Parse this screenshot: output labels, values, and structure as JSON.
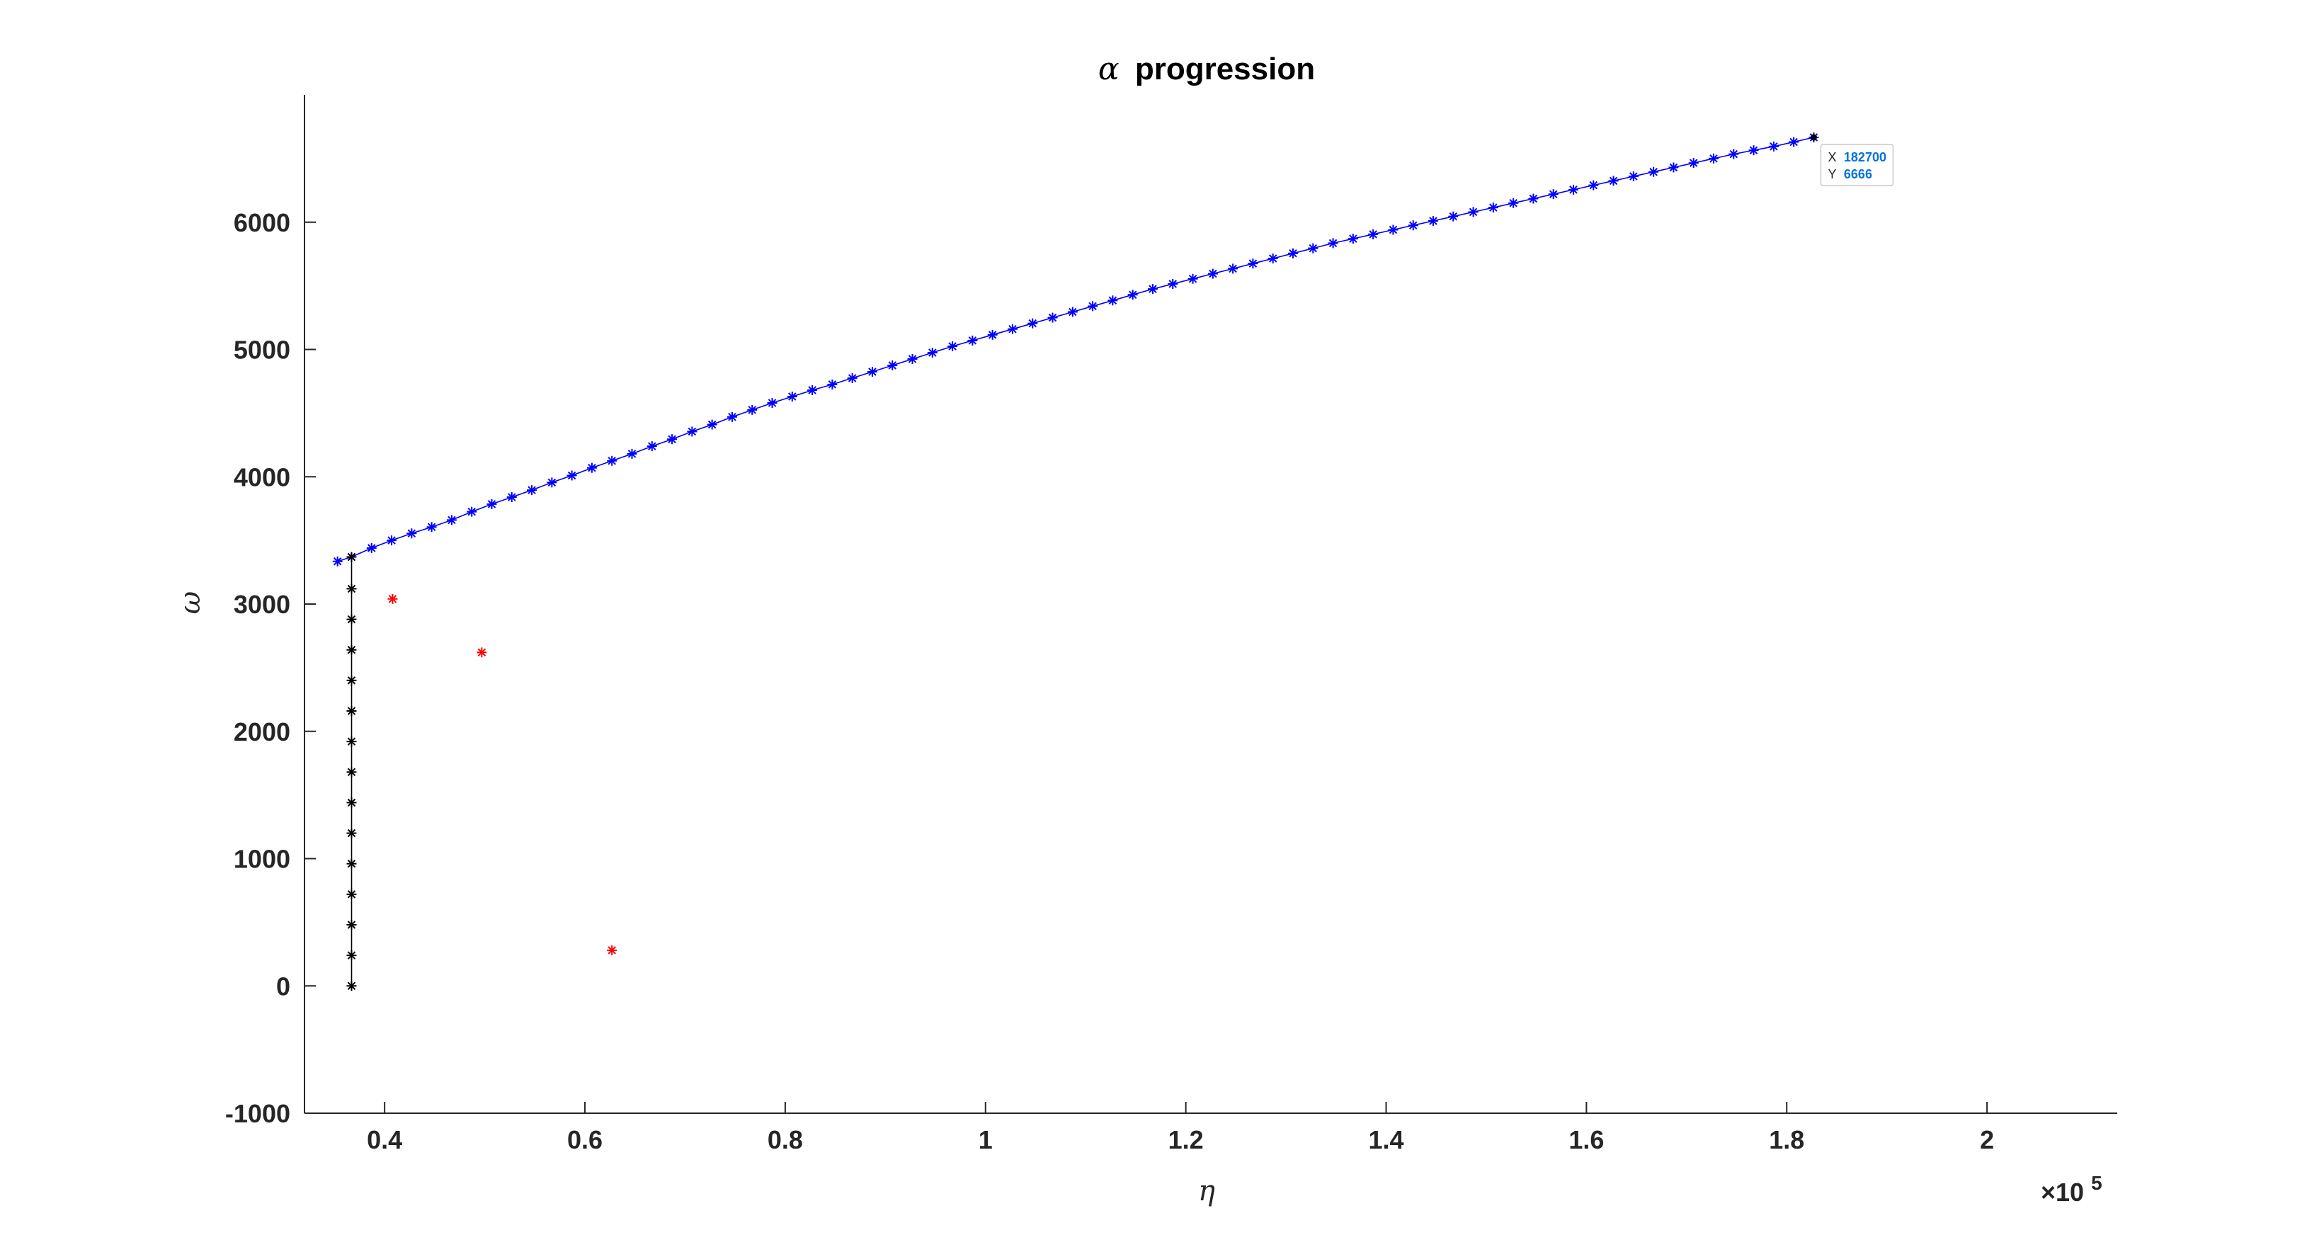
{
  "chart_data": {
    "type": "line",
    "title": "progression",
    "title_symbol": "α",
    "xlabel": "η",
    "ylabel": "ω",
    "xlim": [
      32000,
      213000
    ],
    "ylim": [
      -1000,
      7000
    ],
    "x_exponent_label": "×10",
    "x_exponent_power": "5",
    "x_ticks": [
      {
        "value": 40000,
        "label": "0.4"
      },
      {
        "value": 60000,
        "label": "0.6"
      },
      {
        "value": 80000,
        "label": "0.8"
      },
      {
        "value": 100000,
        "label": "1"
      },
      {
        "value": 120000,
        "label": "1.2"
      },
      {
        "value": 140000,
        "label": "1.4"
      },
      {
        "value": 160000,
        "label": "1.6"
      },
      {
        "value": 180000,
        "label": "1.8"
      },
      {
        "value": 200000,
        "label": "2"
      }
    ],
    "y_ticks": [
      {
        "value": -1000,
        "label": "-1000"
      },
      {
        "value": 0,
        "label": "0"
      },
      {
        "value": 1000,
        "label": "1000"
      },
      {
        "value": 2000,
        "label": "2000"
      },
      {
        "value": 3000,
        "label": "3000"
      },
      {
        "value": 4000,
        "label": "4000"
      },
      {
        "value": 5000,
        "label": "5000"
      },
      {
        "value": 6000,
        "label": "6000"
      }
    ],
    "grid": false,
    "series": [
      {
        "color": "#0000ff",
        "marker": "*",
        "line": true,
        "points": [
          [
            35300,
            3335
          ],
          [
            36700,
            3370
          ],
          [
            38700,
            3440
          ],
          [
            40700,
            3500
          ],
          [
            42700,
            3555
          ],
          [
            44700,
            3605
          ],
          [
            46700,
            3660
          ],
          [
            48700,
            3725
          ],
          [
            50700,
            3785
          ],
          [
            52700,
            3840
          ],
          [
            54700,
            3895
          ],
          [
            56700,
            3955
          ],
          [
            58700,
            4010
          ],
          [
            60700,
            4070
          ],
          [
            62700,
            4125
          ],
          [
            64700,
            4180
          ],
          [
            66700,
            4240
          ],
          [
            68700,
            4295
          ],
          [
            70700,
            4355
          ],
          [
            72700,
            4410
          ],
          [
            74700,
            4470
          ],
          [
            76700,
            4525
          ],
          [
            78700,
            4580
          ],
          [
            80700,
            4630
          ],
          [
            82700,
            4680
          ],
          [
            84700,
            4725
          ],
          [
            86700,
            4775
          ],
          [
            88700,
            4825
          ],
          [
            90700,
            4875
          ],
          [
            92700,
            4925
          ],
          [
            94700,
            4975
          ],
          [
            96700,
            5025
          ],
          [
            98700,
            5070
          ],
          [
            100700,
            5115
          ],
          [
            102700,
            5160
          ],
          [
            104700,
            5205
          ],
          [
            106700,
            5250
          ],
          [
            108700,
            5295
          ],
          [
            110700,
            5340
          ],
          [
            112700,
            5385
          ],
          [
            114700,
            5430
          ],
          [
            116700,
            5475
          ],
          [
            118700,
            5515
          ],
          [
            120700,
            5555
          ],
          [
            122700,
            5595
          ],
          [
            124700,
            5635
          ],
          [
            126700,
            5675
          ],
          [
            128700,
            5715
          ],
          [
            130700,
            5755
          ],
          [
            132700,
            5795
          ],
          [
            134700,
            5835
          ],
          [
            136700,
            5870
          ],
          [
            138700,
            5905
          ],
          [
            140700,
            5940
          ],
          [
            142700,
            5975
          ],
          [
            144700,
            6010
          ],
          [
            146700,
            6045
          ],
          [
            148700,
            6080
          ],
          [
            150700,
            6115
          ],
          [
            152700,
            6150
          ],
          [
            154700,
            6185
          ],
          [
            156700,
            6220
          ],
          [
            158700,
            6255
          ],
          [
            160700,
            6290
          ],
          [
            162700,
            6325
          ],
          [
            164700,
            6360
          ],
          [
            166700,
            6395
          ],
          [
            168700,
            6430
          ],
          [
            170700,
            6465
          ],
          [
            172700,
            6500
          ],
          [
            174700,
            6535
          ],
          [
            176700,
            6565
          ],
          [
            178700,
            6595
          ],
          [
            180700,
            6630
          ],
          [
            182700,
            6666
          ]
        ]
      },
      {
        "color": "#000000",
        "marker": "*",
        "line": true,
        "points": [
          [
            36700,
            0
          ],
          [
            36700,
            240
          ],
          [
            36700,
            480
          ],
          [
            36700,
            720
          ],
          [
            36700,
            960
          ],
          [
            36700,
            1200
          ],
          [
            36700,
            1440
          ],
          [
            36700,
            1680
          ],
          [
            36700,
            1920
          ],
          [
            36700,
            2160
          ],
          [
            36700,
            2400
          ],
          [
            36700,
            2640
          ],
          [
            36700,
            2880
          ],
          [
            36700,
            3120
          ],
          [
            36700,
            3370
          ]
        ]
      },
      {
        "color": "#ff0000",
        "marker": "*",
        "line": false,
        "points": [
          [
            40800,
            3040
          ],
          [
            49700,
            2620
          ],
          [
            62700,
            280
          ]
        ]
      }
    ],
    "datatip": {
      "x_label": "X",
      "x_value": "182700",
      "y_label": "Y",
      "y_value": "6666",
      "x": 182700,
      "y": 6666
    }
  }
}
